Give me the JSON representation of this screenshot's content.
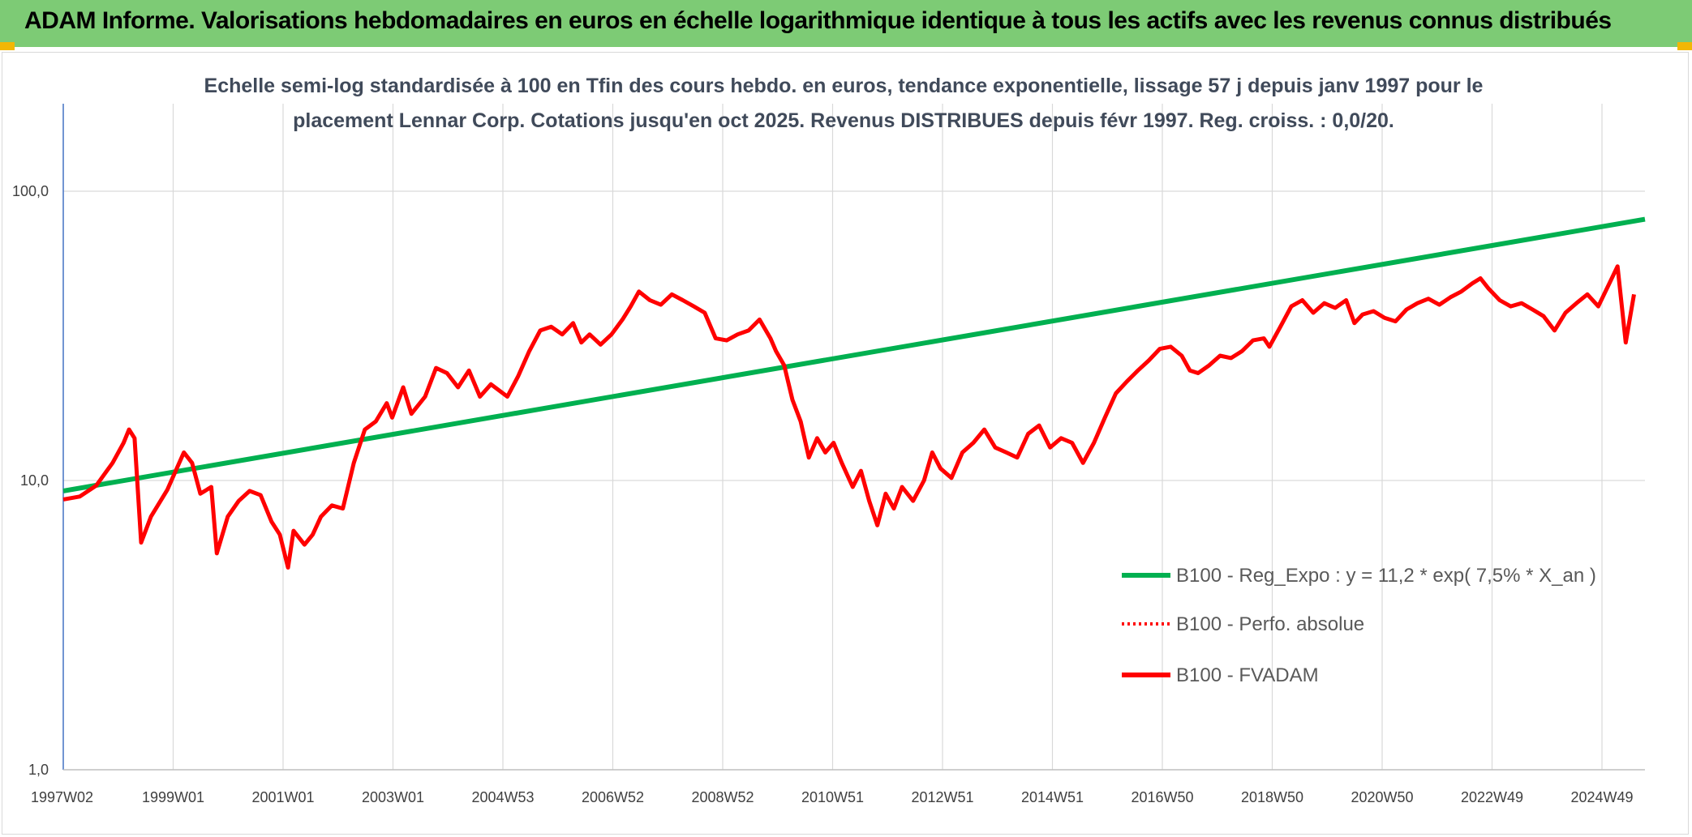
{
  "header": {
    "title": "ADAM Informe. Valorisations hebdomadaires en euros en échelle logarithmique identique à tous les actifs avec les revenus connus distribués"
  },
  "colors": {
    "banner": "#7dcb75",
    "trend": "#00b050",
    "fvadam": "#ff0000",
    "grid": "#d9d9d9"
  },
  "chart_data": {
    "type": "line",
    "title_lines": [
      "Echelle semi-log standardisée à 100 en Tfin des cours hebdo. en euros, tendance exponentielle, lissage 57 j depuis janv 1997 pour le",
      "placement Lennar Corp. Cotations jusqu'en oct 2025. Revenus DISTRIBUES depuis févr 1997. Reg. croiss. : 0,0/20."
    ],
    "y_scale": "log",
    "ylim": [
      1,
      170
    ],
    "y_ticks": [
      "1,0",
      "10,0",
      "100,0"
    ],
    "x_range": [
      1997.0,
      2025.85
    ],
    "x_tick_labels": [
      "1997W02",
      "1999W01",
      "2001W01",
      "2003W01",
      "2004W53",
      "2006W52",
      "2008W52",
      "2010W51",
      "2012W51",
      "2014W51",
      "2016W50",
      "2018W50",
      "2020W50",
      "2022W49",
      "2024W49"
    ],
    "grid": true,
    "legend_position": "bottom-right",
    "series": [
      {
        "name": "B100 - Reg_Expo : y = 11,2 * exp( 7,5% *  X_an )",
        "style": "solid-thick",
        "color": "#00b050",
        "start": [
          1997.0,
          9.2
        ],
        "end": [
          2025.85,
          80
        ]
      },
      {
        "name": "B100 - Perfo. absolue",
        "style": "dotted",
        "color": "#ff0000",
        "points": []
      },
      {
        "name": "B100 - FVADAM",
        "style": "solid",
        "color": "#ff0000",
        "points": [
          [
            1997.0,
            8.6
          ],
          [
            1997.3,
            8.8
          ],
          [
            1997.6,
            9.6
          ],
          [
            1997.9,
            11.5
          ],
          [
            1998.1,
            13.5
          ],
          [
            1998.2,
            15.0
          ],
          [
            1998.3,
            14.0
          ],
          [
            1998.42,
            6.1
          ],
          [
            1998.6,
            7.5
          ],
          [
            1998.9,
            9.3
          ],
          [
            1999.05,
            10.8
          ],
          [
            1999.2,
            12.5
          ],
          [
            1999.35,
            11.5
          ],
          [
            1999.5,
            9.0
          ],
          [
            1999.7,
            9.5
          ],
          [
            1999.8,
            5.6
          ],
          [
            2000.0,
            7.5
          ],
          [
            2000.2,
            8.5
          ],
          [
            2000.4,
            9.2
          ],
          [
            2000.6,
            8.9
          ],
          [
            2000.8,
            7.2
          ],
          [
            2000.95,
            6.5
          ],
          [
            2001.1,
            5.0
          ],
          [
            2001.2,
            6.7
          ],
          [
            2001.4,
            6.0
          ],
          [
            2001.55,
            6.5
          ],
          [
            2001.7,
            7.5
          ],
          [
            2001.9,
            8.2
          ],
          [
            2002.1,
            8.0
          ],
          [
            2002.3,
            11.5
          ],
          [
            2002.5,
            15.0
          ],
          [
            2002.7,
            16.0
          ],
          [
            2002.9,
            18.5
          ],
          [
            2003.0,
            16.5
          ],
          [
            2003.2,
            21.0
          ],
          [
            2003.35,
            17.0
          ],
          [
            2003.6,
            19.5
          ],
          [
            2003.8,
            24.5
          ],
          [
            2004.0,
            23.5
          ],
          [
            2004.2,
            21.0
          ],
          [
            2004.4,
            24.0
          ],
          [
            2004.6,
            19.5
          ],
          [
            2004.8,
            21.5
          ],
          [
            2005.1,
            19.5
          ],
          [
            2005.3,
            23.0
          ],
          [
            2005.5,
            28.0
          ],
          [
            2005.7,
            33.0
          ],
          [
            2005.9,
            34.0
          ],
          [
            2006.1,
            32.0
          ],
          [
            2006.3,
            35.0
          ],
          [
            2006.45,
            30.0
          ],
          [
            2006.6,
            32.0
          ],
          [
            2006.8,
            29.5
          ],
          [
            2007.0,
            32.0
          ],
          [
            2007.2,
            36.0
          ],
          [
            2007.35,
            40.0
          ],
          [
            2007.5,
            45.0
          ],
          [
            2007.7,
            42.0
          ],
          [
            2007.9,
            40.5
          ],
          [
            2008.1,
            44.0
          ],
          [
            2008.3,
            42.0
          ],
          [
            2008.5,
            40.0
          ],
          [
            2008.7,
            38.0
          ],
          [
            2008.9,
            31.0
          ],
          [
            2009.1,
            30.5
          ],
          [
            2009.3,
            32.0
          ],
          [
            2009.5,
            33.0
          ],
          [
            2009.7,
            36.0
          ],
          [
            2009.9,
            31.0
          ],
          [
            2010.0,
            28.0
          ],
          [
            2010.15,
            25.0
          ],
          [
            2010.3,
            19.0
          ],
          [
            2010.45,
            16.0
          ],
          [
            2010.6,
            12.0
          ],
          [
            2010.75,
            14.0
          ],
          [
            2010.9,
            12.5
          ],
          [
            2011.05,
            13.5
          ],
          [
            2011.2,
            11.5
          ],
          [
            2011.4,
            9.5
          ],
          [
            2011.55,
            10.8
          ],
          [
            2011.7,
            8.5
          ],
          [
            2011.85,
            7.0
          ],
          [
            2012.0,
            9.0
          ],
          [
            2012.15,
            8.0
          ],
          [
            2012.3,
            9.5
          ],
          [
            2012.5,
            8.5
          ],
          [
            2012.7,
            10.0
          ],
          [
            2012.85,
            12.5
          ],
          [
            2013.0,
            11.0
          ],
          [
            2013.2,
            10.2
          ],
          [
            2013.4,
            12.5
          ],
          [
            2013.6,
            13.5
          ],
          [
            2013.8,
            15.0
          ],
          [
            2014.0,
            13.0
          ],
          [
            2014.2,
            12.5
          ],
          [
            2014.4,
            12.0
          ],
          [
            2014.6,
            14.5
          ],
          [
            2014.8,
            15.5
          ],
          [
            2015.0,
            13.0
          ],
          [
            2015.2,
            14.0
          ],
          [
            2015.4,
            13.5
          ],
          [
            2015.6,
            11.5
          ],
          [
            2015.8,
            13.5
          ],
          [
            2016.0,
            16.5
          ],
          [
            2016.2,
            20.0
          ],
          [
            2016.4,
            22.0
          ],
          [
            2016.6,
            24.0
          ],
          [
            2016.8,
            26.0
          ],
          [
            2017.0,
            28.5
          ],
          [
            2017.2,
            29.0
          ],
          [
            2017.4,
            27.0
          ],
          [
            2017.55,
            24.0
          ],
          [
            2017.7,
            23.5
          ],
          [
            2017.9,
            25.0
          ],
          [
            2018.1,
            27.0
          ],
          [
            2018.3,
            26.5
          ],
          [
            2018.5,
            28.0
          ],
          [
            2018.7,
            30.5
          ],
          [
            2018.9,
            31.0
          ],
          [
            2019.0,
            29.0
          ],
          [
            2019.2,
            34.0
          ],
          [
            2019.4,
            40.0
          ],
          [
            2019.6,
            42.0
          ],
          [
            2019.8,
            38.0
          ],
          [
            2020.0,
            41.0
          ],
          [
            2020.2,
            39.5
          ],
          [
            2020.4,
            42.0
          ],
          [
            2020.55,
            35.0
          ],
          [
            2020.7,
            37.5
          ],
          [
            2020.9,
            38.5
          ],
          [
            2021.1,
            36.5
          ],
          [
            2021.3,
            35.5
          ],
          [
            2021.5,
            39.0
          ],
          [
            2021.7,
            41.0
          ],
          [
            2021.9,
            42.5
          ],
          [
            2022.1,
            40.5
          ],
          [
            2022.3,
            43.0
          ],
          [
            2022.5,
            45.0
          ],
          [
            2022.7,
            48.0
          ],
          [
            2022.85,
            50.0
          ],
          [
            2023.0,
            46.0
          ],
          [
            2023.2,
            42.0
          ],
          [
            2023.4,
            40.0
          ],
          [
            2023.6,
            41.0
          ],
          [
            2023.8,
            39.0
          ],
          [
            2024.0,
            37.0
          ],
          [
            2024.2,
            33.0
          ],
          [
            2024.4,
            38.0
          ],
          [
            2024.6,
            41.0
          ],
          [
            2024.8,
            44.0
          ],
          [
            2025.0,
            40.0
          ],
          [
            2025.2,
            48.0
          ],
          [
            2025.35,
            55.0
          ],
          [
            2025.5,
            30.0
          ],
          [
            2025.65,
            44.0
          ]
        ]
      }
    ]
  }
}
